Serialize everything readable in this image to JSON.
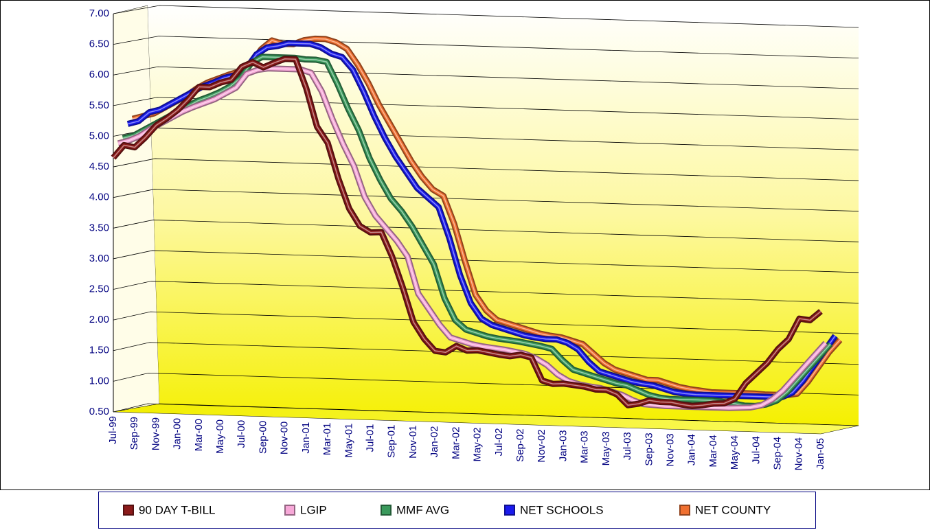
{
  "chart_data": {
    "type": "line",
    "categories": [
      "Jul-99",
      null,
      "Sep-99",
      null,
      "Nov-99",
      null,
      "Jan-00",
      null,
      "Mar-00",
      null,
      "May-00",
      null,
      "Jul-00",
      null,
      "Sep-00",
      null,
      "Nov-00",
      null,
      "Jan-01",
      null,
      "Mar-01",
      null,
      "May-01",
      null,
      "Jul-01",
      null,
      "Sep-01",
      null,
      "Nov-01",
      null,
      "Jan-02",
      null,
      "Mar-02",
      null,
      "May-02",
      null,
      "Jul-02",
      null,
      "Sep-02",
      null,
      "Nov-02",
      null,
      "Jan-03",
      null,
      "Mar-03",
      null,
      "May-03",
      null,
      "Jul-03",
      null,
      "Sep-03",
      null,
      "Nov-03",
      null,
      "Jan-04",
      null,
      "Mar-04",
      null,
      "May-04",
      null,
      "Jul-04",
      null,
      "Sep-04",
      null,
      "Nov-04",
      null,
      "Jan-05"
    ],
    "series": [
      {
        "name": "90 DAY T-BILL",
        "color": "#8b1a1a",
        "values": [
          4.65,
          4.86,
          4.83,
          5.0,
          5.2,
          5.32,
          5.46,
          5.64,
          5.85,
          5.85,
          5.93,
          5.98,
          6.2,
          6.28,
          6.2,
          6.28,
          6.35,
          6.35,
          5.88,
          5.26,
          5.0,
          4.42,
          3.94,
          3.66,
          3.56,
          3.57,
          3.18,
          2.68,
          2.12,
          1.85,
          1.66,
          1.64,
          1.75,
          1.68,
          1.69,
          1.66,
          1.63,
          1.61,
          1.64,
          1.6,
          1.23,
          1.18,
          1.19,
          1.17,
          1.15,
          1.11,
          1.11,
          1.04,
          0.87,
          0.9,
          0.96,
          0.94,
          0.94,
          0.91,
          0.89,
          0.91,
          0.94,
          0.95,
          1.03,
          1.29,
          1.46,
          1.63,
          1.86,
          2.03,
          2.37,
          2.35,
          2.5
        ]
      },
      {
        "name": "LGIP",
        "color": "#f7a8d8",
        "values": [
          4.85,
          4.9,
          4.98,
          5.1,
          5.2,
          5.3,
          5.4,
          5.48,
          5.55,
          5.62,
          5.72,
          5.82,
          6.05,
          6.12,
          6.15,
          6.15,
          6.15,
          6.15,
          6.1,
          5.8,
          5.35,
          4.95,
          4.6,
          4.1,
          3.8,
          3.6,
          3.4,
          3.15,
          2.55,
          2.3,
          2.05,
          1.85,
          1.8,
          1.75,
          1.72,
          1.7,
          1.68,
          1.65,
          1.62,
          1.55,
          1.45,
          1.3,
          1.2,
          1.15,
          1.12,
          1.1,
          1.05,
          1.0,
          0.92,
          0.86,
          0.85,
          0.84,
          0.84,
          0.84,
          0.84,
          0.84,
          0.84,
          0.84,
          0.85,
          0.86,
          0.9,
          1.0,
          1.15,
          1.35,
          1.55,
          1.75,
          1.95
        ]
      },
      {
        "name": "MMF AVG",
        "color": "#3a9a5c",
        "values": [
          4.9,
          4.95,
          5.05,
          5.15,
          5.25,
          5.35,
          5.45,
          5.55,
          5.62,
          5.7,
          5.8,
          5.95,
          6.2,
          6.3,
          6.3,
          6.3,
          6.3,
          6.28,
          6.28,
          6.25,
          5.9,
          5.5,
          5.15,
          4.7,
          4.35,
          4.05,
          3.85,
          3.6,
          3.3,
          3.0,
          2.45,
          2.1,
          1.95,
          1.9,
          1.85,
          1.82,
          1.8,
          1.78,
          1.75,
          1.72,
          1.68,
          1.5,
          1.35,
          1.3,
          1.25,
          1.2,
          1.15,
          1.12,
          1.05,
          0.98,
          0.94,
          0.92,
          0.92,
          0.92,
          0.92,
          0.92,
          0.9,
          0.88,
          0.85,
          0.85,
          0.88,
          0.95,
          1.1,
          1.3,
          1.5,
          1.7,
          1.9
        ]
      },
      {
        "name": "NET SCHOOLS",
        "color": "#1a1aee",
        "values": [
          5.1,
          5.15,
          5.3,
          5.35,
          5.45,
          5.55,
          5.65,
          5.75,
          5.82,
          5.9,
          5.95,
          6.05,
          6.3,
          6.42,
          6.45,
          6.5,
          6.5,
          6.5,
          6.45,
          6.35,
          6.3,
          6.1,
          5.75,
          5.35,
          5.0,
          4.7,
          4.45,
          4.2,
          4.05,
          3.9,
          3.4,
          2.8,
          2.35,
          2.1,
          2.0,
          1.95,
          1.9,
          1.85,
          1.82,
          1.8,
          1.8,
          1.75,
          1.65,
          1.45,
          1.3,
          1.25,
          1.2,
          1.15,
          1.12,
          1.1,
          1.05,
          1.0,
          0.98,
          0.97,
          0.97,
          0.97,
          0.97,
          0.97,
          0.97,
          0.97,
          0.97,
          0.97,
          1.05,
          1.25,
          1.5,
          1.75,
          2.0
        ]
      },
      {
        "name": "NET COUNTY",
        "color": "#f07030",
        "values": [
          5.15,
          5.2,
          5.25,
          5.35,
          5.45,
          5.55,
          5.68,
          5.78,
          5.85,
          5.92,
          5.98,
          6.1,
          6.35,
          6.5,
          6.45,
          6.45,
          6.52,
          6.55,
          6.55,
          6.5,
          6.4,
          6.15,
          5.85,
          5.5,
          5.2,
          4.9,
          4.6,
          4.35,
          4.15,
          4.05,
          3.6,
          3.0,
          2.45,
          2.2,
          2.05,
          2.0,
          1.95,
          1.9,
          1.85,
          1.82,
          1.8,
          1.75,
          1.7,
          1.55,
          1.4,
          1.3,
          1.25,
          1.2,
          1.15,
          1.15,
          1.1,
          1.05,
          1.02,
          1.0,
          0.98,
          0.98,
          0.98,
          0.98,
          0.98,
          0.97,
          0.97,
          0.97,
          1.0,
          1.2,
          1.45,
          1.7,
          1.9
        ]
      }
    ],
    "ylim": [
      0.5,
      7
    ],
    "yticks": [
      {
        "value": 0.5,
        "label": "0.50"
      },
      {
        "value": 1,
        "label": "1.00"
      },
      {
        "value": 1.5,
        "label": "1.50"
      },
      {
        "value": 2,
        "label": "2.00"
      },
      {
        "value": 2.5,
        "label": "2.50"
      },
      {
        "value": 3,
        "label": "3.00"
      },
      {
        "value": 3.5,
        "label": "3.50"
      },
      {
        "value": 4,
        "label": "4.00"
      },
      {
        "value": 4.5,
        "label": "4.50"
      },
      {
        "value": 5,
        "label": "5.00"
      },
      {
        "value": 5.5,
        "label": "5.50"
      },
      {
        "value": 6,
        "label": "6.00"
      },
      {
        "value": 6.5,
        "label": "6.50"
      },
      {
        "value": 7,
        "label": "7.00"
      }
    ],
    "grid": true,
    "legend": "bottom"
  }
}
